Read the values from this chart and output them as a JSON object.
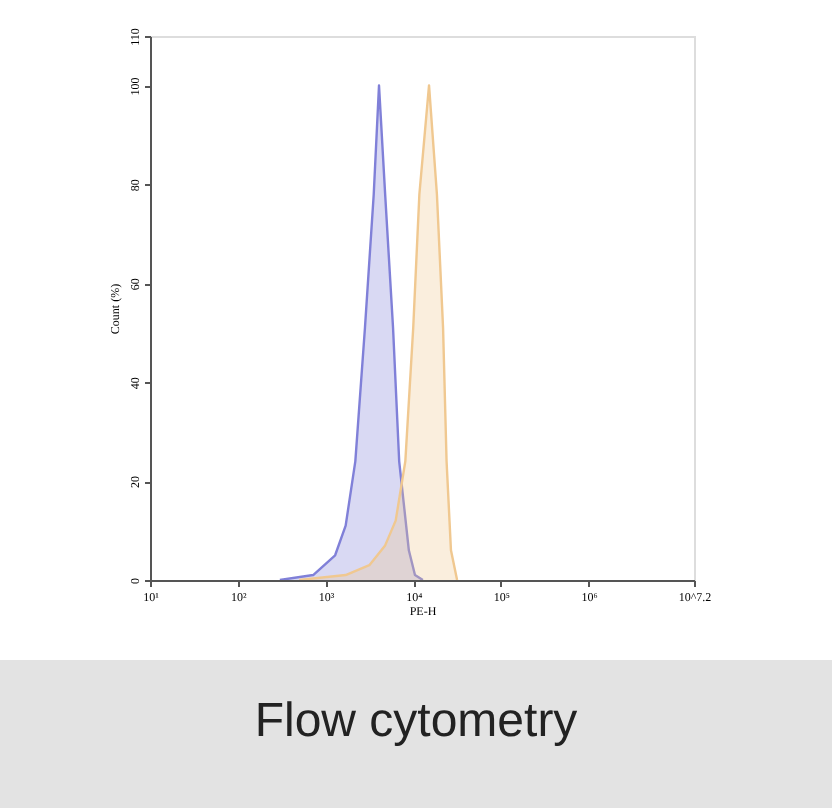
{
  "chart_data": {
    "type": "area",
    "xlabel": "PE-H",
    "ylabel": "Count (%)",
    "log": "x",
    "xlim": [
      10,
      15848932
    ],
    "ylim": [
      0,
      110
    ],
    "xticks": [
      {
        "value": 10,
        "label": "10¹"
      },
      {
        "value": 100,
        "label": "10²"
      },
      {
        "value": 1000,
        "label": "10³"
      },
      {
        "value": 10000,
        "label": "10⁴"
      },
      {
        "value": 100000,
        "label": "10⁵"
      },
      {
        "value": 1000000,
        "label": "10⁶"
      },
      {
        "value": 15848932,
        "label": "10^7.2"
      }
    ],
    "yticks": [
      0,
      20,
      40,
      60,
      80,
      100,
      110
    ],
    "grid": false,
    "series": [
      {
        "color": "#8080d8",
        "x": [
          302,
          724,
          1288,
          1698,
          2188,
          2818,
          3548,
          4074,
          4786,
          5888,
          6918,
          8913,
          10470,
          12880
        ],
        "values": [
          0,
          1,
          5,
          11,
          24,
          51,
          78,
          100,
          78,
          51,
          24,
          6,
          1,
          0
        ]
      },
      {
        "color": "#f0c890",
        "x": [
          501,
          1698,
          3162,
          4786,
          6310,
          8128,
          10000,
          11750,
          15140,
          18620,
          21880,
          23990,
          26920,
          31620
        ],
        "values": [
          0,
          1,
          3,
          7,
          12,
          24,
          51,
          78,
          100,
          78,
          51,
          24,
          6,
          0
        ]
      }
    ],
    "annotations": [
      "Flow cytometry"
    ]
  }
}
